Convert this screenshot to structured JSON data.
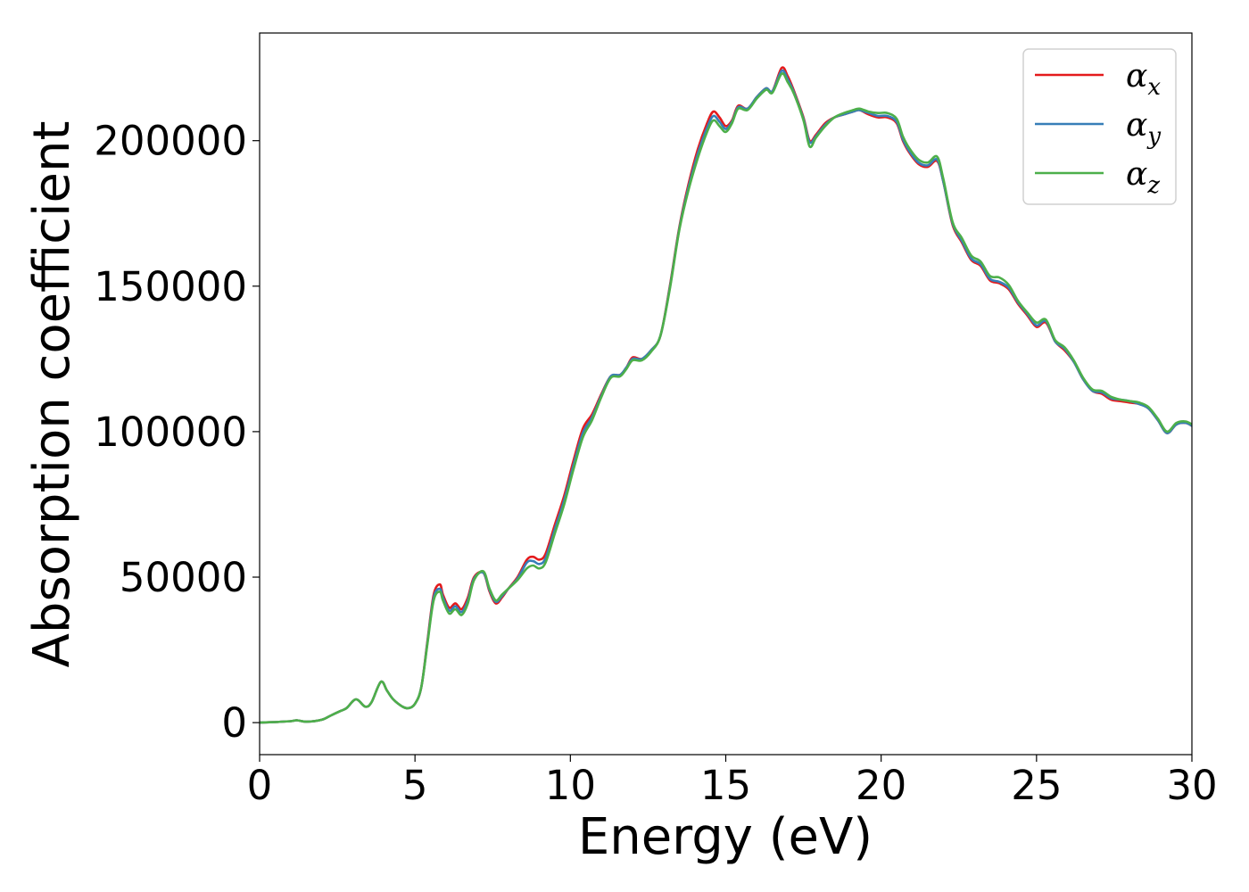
{
  "chart_data": {
    "type": "line",
    "title": "",
    "xlabel": "Energy (eV)",
    "ylabel": "Absorption coefficient",
    "xlim": [
      0,
      30
    ],
    "ylim": [
      -11000,
      237000
    ],
    "xticks": [
      0,
      5,
      10,
      15,
      20,
      25,
      30
    ],
    "xtick_labels": [
      "0",
      "5",
      "10",
      "15",
      "20",
      "25",
      "30"
    ],
    "yticks": [
      0,
      50000,
      100000,
      150000,
      200000
    ],
    "ytick_labels": [
      "0",
      "50000",
      "100000",
      "150000",
      "200000"
    ],
    "grid": false,
    "legend_position": "top-right",
    "x": [
      0,
      0.5,
      1,
      1.2,
      1.5,
      2,
      2.3,
      2.6,
      2.8,
      3.1,
      3.4,
      3.6,
      3.9,
      4.1,
      4.3,
      4.6,
      4.8,
      5.0,
      5.2,
      5.4,
      5.6,
      5.8,
      5.9,
      6.1,
      6.3,
      6.5,
      6.7,
      6.9,
      7.2,
      7.4,
      7.6,
      7.8,
      8.0,
      8.3,
      8.6,
      8.8,
      9.0,
      9.2,
      9.5,
      9.8,
      10.1,
      10.4,
      10.7,
      11.0,
      11.3,
      11.6,
      11.8,
      12.0,
      12.3,
      12.6,
      12.9,
      13.2,
      13.5,
      13.8,
      14.1,
      14.4,
      14.6,
      14.8,
      15.0,
      15.2,
      15.4,
      15.7,
      16.0,
      16.3,
      16.5,
      16.8,
      17.0,
      17.2,
      17.5,
      17.7,
      17.9,
      18.2,
      18.5,
      18.8,
      19.1,
      19.3,
      19.6,
      19.9,
      20.2,
      20.5,
      20.7,
      20.9,
      21.2,
      21.5,
      21.8,
      22.0,
      22.3,
      22.6,
      22.9,
      23.2,
      23.5,
      23.8,
      24.1,
      24.4,
      24.7,
      25.0,
      25.3,
      25.6,
      25.9,
      26.2,
      26.5,
      26.8,
      27.1,
      27.4,
      27.7,
      28.0,
      28.3,
      28.6,
      28.9,
      29.2,
      29.5,
      29.8,
      30.0
    ],
    "series": [
      {
        "name": "αx",
        "label_base": "α",
        "label_sub": "x",
        "color": "#e41a1c",
        "values": [
          0,
          200,
          500,
          800,
          300,
          1000,
          2500,
          4000,
          5000,
          8000,
          5500,
          7000,
          14000,
          11000,
          8000,
          5500,
          5000,
          6500,
          12000,
          28000,
          44000,
          47500,
          44000,
          39500,
          41000,
          39000,
          43000,
          50000,
          51500,
          45000,
          41000,
          43000,
          46000,
          50000,
          56000,
          57000,
          56000,
          58000,
          68000,
          78000,
          90000,
          101000,
          106000,
          113000,
          119000,
          119500,
          122000,
          125500,
          125000,
          128000,
          133000,
          150000,
          170000,
          185000,
          197000,
          206000,
          210000,
          208000,
          205000,
          207000,
          212000,
          211000,
          215000,
          218000,
          217000,
          225000,
          222000,
          217000,
          208000,
          200000,
          202000,
          206000,
          208000,
          209000,
          210000,
          210500,
          209000,
          208000,
          208000,
          206000,
          200000,
          196000,
          192000,
          191000,
          193000,
          186000,
          171000,
          165000,
          159000,
          157000,
          152000,
          151000,
          149000,
          144000,
          140000,
          136000,
          137500,
          131000,
          128000,
          124000,
          118000,
          114000,
          113000,
          111000,
          110500,
          110000,
          109500,
          108000,
          104000,
          99500,
          102500,
          103000,
          102000
        ]
      },
      {
        "name": "αy",
        "label_base": "α",
        "label_sub": "y",
        "color": "#377eb8",
        "values": [
          0,
          200,
          500,
          800,
          300,
          1000,
          2500,
          4000,
          5000,
          8000,
          5500,
          7000,
          14000,
          11000,
          8000,
          5500,
          5000,
          6500,
          12000,
          27500,
          43000,
          46000,
          43000,
          38500,
          40000,
          38000,
          42000,
          49500,
          51500,
          45500,
          41500,
          43500,
          46000,
          49500,
          55000,
          55500,
          54500,
          56500,
          66500,
          76500,
          88500,
          99500,
          105000,
          112500,
          119000,
          119500,
          122000,
          125000,
          125000,
          128000,
          133000,
          149500,
          169500,
          184000,
          195500,
          204500,
          208500,
          206500,
          204000,
          206500,
          211500,
          211000,
          215000,
          218000,
          217000,
          224000,
          221000,
          216500,
          207500,
          199500,
          201500,
          205500,
          208000,
          209000,
          210000,
          210500,
          209500,
          208500,
          208500,
          206500,
          200500,
          196500,
          192500,
          191500,
          193500,
          186000,
          171500,
          165500,
          159500,
          157500,
          152500,
          151500,
          149500,
          144500,
          140500,
          136500,
          138000,
          131000,
          128500,
          124000,
          118000,
          114000,
          113500,
          111500,
          111000,
          110500,
          109500,
          108000,
          104000,
          99500,
          102500,
          103000,
          102000
        ]
      },
      {
        "name": "αz",
        "label_base": "α",
        "label_sub": "z",
        "color": "#4daf4a",
        "values": [
          0,
          200,
          500,
          800,
          300,
          1000,
          2500,
          4000,
          5000,
          8000,
          5500,
          7000,
          14000,
          11000,
          8000,
          5500,
          5000,
          6500,
          12000,
          27000,
          42000,
          45000,
          42000,
          37500,
          39000,
          37000,
          41000,
          49000,
          52000,
          46000,
          42000,
          44000,
          46000,
          49000,
          53000,
          54000,
          53000,
          55000,
          65000,
          75000,
          87000,
          98000,
          104000,
          112000,
          118500,
          119000,
          121500,
          124500,
          124500,
          127500,
          133000,
          149000,
          169000,
          183000,
          194000,
          203000,
          207000,
          205000,
          203000,
          206000,
          211000,
          210500,
          214500,
          217500,
          216500,
          223000,
          220000,
          216000,
          207000,
          198000,
          201000,
          205000,
          208000,
          209500,
          210500,
          211000,
          210000,
          209500,
          209500,
          207500,
          201500,
          197500,
          193500,
          192500,
          194500,
          187000,
          172000,
          166500,
          160500,
          158500,
          153500,
          153000,
          150500,
          145000,
          141000,
          137500,
          138500,
          131500,
          129000,
          124500,
          118500,
          114500,
          114000,
          112000,
          111000,
          110500,
          110000,
          108500,
          104500,
          100000,
          103000,
          103500,
          102500
        ]
      }
    ]
  }
}
